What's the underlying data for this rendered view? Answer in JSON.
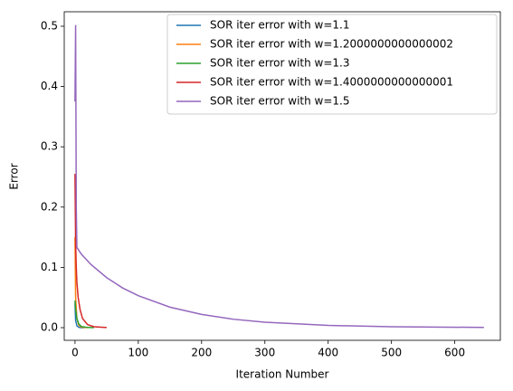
{
  "chart_data": {
    "type": "line",
    "xlabel": "Iteration Number",
    "ylabel": "Error",
    "xlim": [
      -17,
      672
    ],
    "ylim": [
      -0.021,
      0.524
    ],
    "xticks": [
      0,
      100,
      200,
      300,
      400,
      500,
      600
    ],
    "yticks": [
      {
        "value": 0,
        "label": "0.0"
      },
      0.1,
      0.2,
      0.3,
      0.4,
      0.5
    ],
    "legend": "upper right",
    "series": [
      {
        "name": "SOR iter error with w=1.1",
        "color": "#1f77b4",
        "x": [
          0,
          1,
          3,
          6,
          10,
          15
        ],
        "values": [
          0.04,
          0.012,
          0.003,
          0.0005,
          0.0001,
          2e-05
        ]
      },
      {
        "name": "SOR iter error with w=1.2000000000000002",
        "color": "#ff7f0e",
        "x": [
          0,
          1,
          3,
          6,
          10,
          20
        ],
        "values": [
          0.15,
          0.05,
          0.015,
          0.004,
          0.001,
          0.0001
        ]
      },
      {
        "name": "SOR iter error with w=1.3",
        "color": "#2ca02c",
        "x": [
          0,
          1,
          3,
          6,
          10,
          20,
          30
        ],
        "values": [
          0.045,
          0.03,
          0.015,
          0.006,
          0.002,
          0.0003,
          0.0001
        ]
      },
      {
        "name": "SOR iter error with w=1.4000000000000001",
        "color": "#d62728",
        "x": [
          0,
          1,
          2,
          3,
          5,
          8,
          12,
          20,
          30,
          50
        ],
        "values": [
          0.255,
          0.14,
          0.1,
          0.075,
          0.05,
          0.03,
          0.015,
          0.005,
          0.0015,
          0.0002
        ]
      },
      {
        "name": "SOR iter error with w=1.5",
        "color": "#9467bd",
        "x": [
          0,
          1,
          2,
          3,
          10,
          25,
          50,
          75,
          100,
          150,
          200,
          250,
          300,
          400,
          500,
          646
        ],
        "values": [
          0.375,
          0.502,
          0.2,
          0.133,
          0.122,
          0.105,
          0.083,
          0.066,
          0.053,
          0.034,
          0.022,
          0.014,
          0.009,
          0.0037,
          0.0015,
          0.0004
        ]
      }
    ]
  }
}
